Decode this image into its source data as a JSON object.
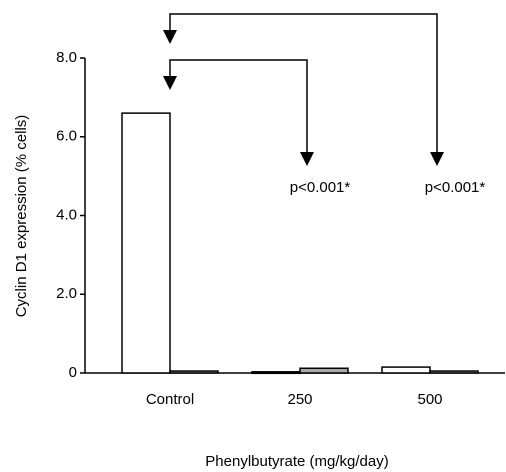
{
  "chart_data": {
    "type": "bar",
    "xlabel": "Phenylbutyrate (mg/kg/day)",
    "ylabel": "Cyclin D1 expression (% cells)",
    "categories": [
      "Control",
      "250",
      "500"
    ],
    "series": [
      {
        "color": "#ffffff",
        "values": [
          6.6,
          0.03,
          0.15
        ]
      },
      {
        "color": "#aaaaaa",
        "values": [
          0.05,
          0.12,
          0.05
        ]
      }
    ],
    "ylim": [
      0,
      8
    ],
    "yticks": [
      0,
      {
        "value": 2,
        "label": "2.0"
      },
      {
        "value": 4,
        "label": "4.0"
      },
      {
        "value": 6,
        "label": "6.0"
      },
      {
        "value": 8,
        "label": "8.0"
      }
    ],
    "annotations": [
      "p<0.001*",
      "p<0.001*"
    ]
  }
}
